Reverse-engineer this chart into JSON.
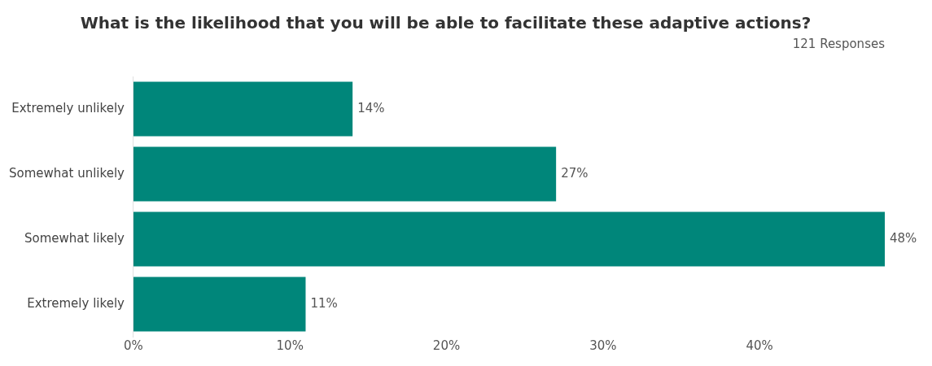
{
  "chart_data": {
    "type": "bar",
    "orientation": "horizontal",
    "title": "What is the likelihood that you will be able to facilitate these adaptive actions?",
    "subtitle": "121 Responses",
    "categories": [
      "Extremely unlikely",
      "Somewhat unlikely",
      "Somewhat likely",
      "Extremely likely"
    ],
    "values": [
      14,
      27,
      48,
      11
    ],
    "color": "#00867a",
    "value_labels": [
      "14%",
      "27%",
      "48%",
      "11%"
    ],
    "xlim": [
      0,
      48
    ],
    "xticks": [
      {
        "value": 0,
        "label": "0%"
      },
      {
        "value": 10,
        "label": "10%"
      },
      {
        "value": 20,
        "label": "20%"
      },
      {
        "value": 30,
        "label": "30%"
      },
      {
        "value": 40,
        "label": "40%"
      }
    ]
  }
}
